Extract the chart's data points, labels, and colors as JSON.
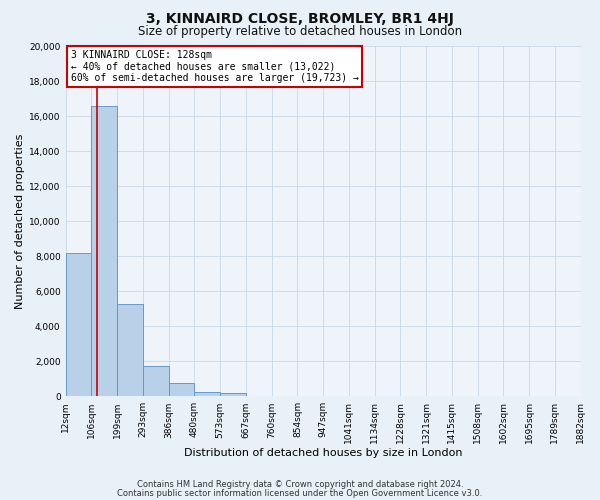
{
  "title": "3, KINNAIRD CLOSE, BROMLEY, BR1 4HJ",
  "subtitle": "Size of property relative to detached houses in London",
  "xlabel": "Distribution of detached houses by size in London",
  "ylabel": "Number of detached properties",
  "bar_labels": [
    "12sqm",
    "106sqm",
    "199sqm",
    "293sqm",
    "386sqm",
    "480sqm",
    "573sqm",
    "667sqm",
    "760sqm",
    "854sqm",
    "947sqm",
    "1041sqm",
    "1134sqm",
    "1228sqm",
    "1321sqm",
    "1415sqm",
    "1508sqm",
    "1602sqm",
    "1695sqm",
    "1789sqm",
    "1882sqm"
  ],
  "bar_values": [
    8200,
    16600,
    5300,
    1750,
    750,
    250,
    200,
    0,
    0,
    0,
    0,
    0,
    0,
    0,
    0,
    0,
    0,
    0,
    0,
    0,
    0
  ],
  "bar_color": "#b8d0e8",
  "bar_edge_color": "#6699cc",
  "bin_edges": [
    12,
    106,
    199,
    293,
    386,
    480,
    573,
    667,
    760,
    854,
    947,
    1041,
    1134,
    1228,
    1321,
    1415,
    1508,
    1602,
    1695,
    1789,
    1882
  ],
  "ylim": [
    0,
    20000
  ],
  "yticks": [
    0,
    2000,
    4000,
    6000,
    8000,
    10000,
    12000,
    14000,
    16000,
    18000,
    20000
  ],
  "annotation_title": "3 KINNAIRD CLOSE: 128sqm",
  "annotation_line1": "← 40% of detached houses are smaller (13,022)",
  "annotation_line2": "60% of semi-detached houses are larger (19,723) →",
  "annotation_box_color": "#ffffff",
  "annotation_box_edge": "#cc0000",
  "red_line_color": "#cc0000",
  "footer1": "Contains HM Land Registry data © Crown copyright and database right 2024.",
  "footer2": "Contains public sector information licensed under the Open Government Licence v3.0.",
  "background_color": "#e8f0f8",
  "plot_bg_color": "#eef4fa",
  "grid_color": "#c8d8e8",
  "title_fontsize": 10,
  "subtitle_fontsize": 8.5,
  "axis_label_fontsize": 8,
  "tick_fontsize": 6.5,
  "annotation_fontsize": 7,
  "footer_fontsize": 6
}
